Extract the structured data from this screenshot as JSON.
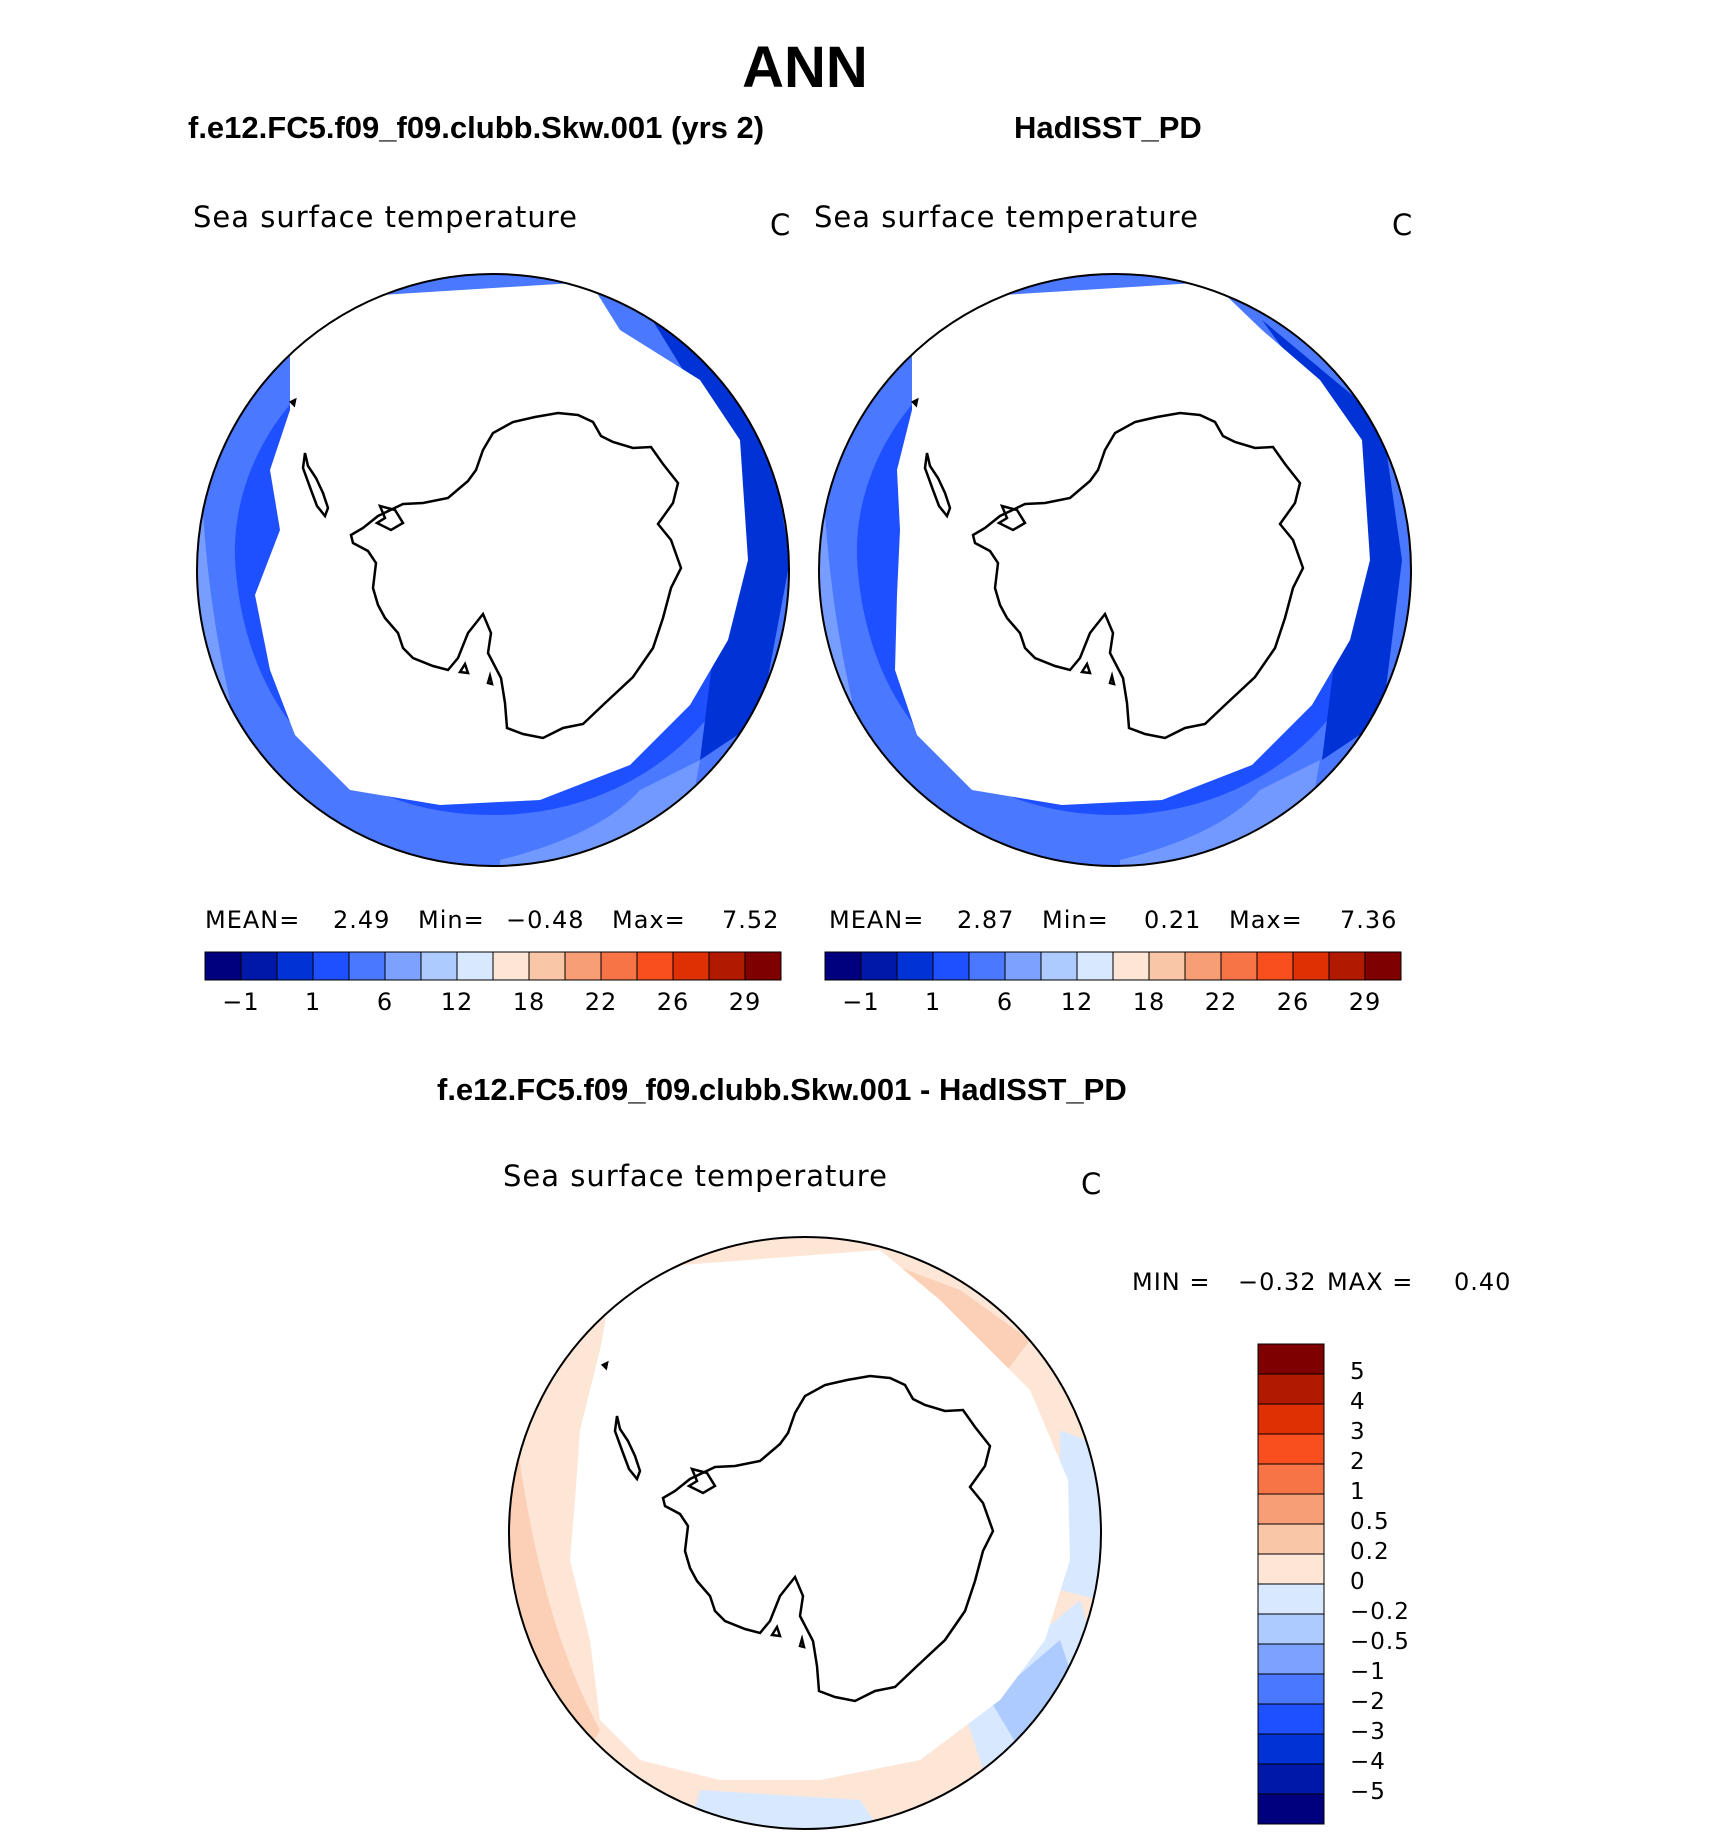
{
  "title": "ANN",
  "panels": {
    "model": {
      "case": "f.e12.FC5.f09_f09.clubb.Skw.001 (yrs 2)",
      "variable": "Sea surface temperature",
      "units": "C",
      "stats": {
        "mean_label": "MEAN=",
        "mean": "2.49",
        "min_label": "Min=",
        "min": "−0.48",
        "max_label": "Max=",
        "max": "7.52"
      }
    },
    "obs": {
      "case": "HadISST_PD",
      "variable": "Sea surface temperature",
      "units": "C",
      "stats": {
        "mean_label": "MEAN=",
        "mean": "2.87",
        "min_label": "Min=",
        "min": "0.21",
        "max_label": "Max=",
        "max": "7.36"
      }
    },
    "diff": {
      "case": "f.e12.FC5.f09_f09.clubb.Skw.001 - HadISST_PD",
      "variable": "Sea surface temperature",
      "units": "C",
      "stats": {
        "min_label": "MIN =",
        "min": "−0.32",
        "max_label": "MAX =",
        "max": "0.40"
      }
    }
  },
  "chart_data": [
    {
      "type": "heatmap",
      "name": "model-sst-map",
      "projection": "south-polar-stereographic",
      "title": "Sea surface temperature",
      "units": "C",
      "colorbar": {
        "orientation": "horizontal",
        "colors": [
          "#00007f",
          "#0018a8",
          "#0032d6",
          "#1e50ff",
          "#4a78ff",
          "#7ca1ff",
          "#aecbff",
          "#d8e9ff",
          "#fde6d6",
          "#fac6a8",
          "#f89e76",
          "#f77447",
          "#f94f1f",
          "#df3003",
          "#b21a00",
          "#7f0000"
        ],
        "tick_labels": [
          "−1",
          "1",
          "6",
          "12",
          "18",
          "22",
          "26",
          "29"
        ]
      },
      "mean": 2.49,
      "min": -0.48,
      "max": 7.52
    },
    {
      "type": "heatmap",
      "name": "obs-sst-map",
      "projection": "south-polar-stereographic",
      "title": "Sea surface temperature",
      "units": "C",
      "colorbar": {
        "orientation": "horizontal",
        "colors": [
          "#00007f",
          "#0018a8",
          "#0032d6",
          "#1e50ff",
          "#4a78ff",
          "#7ca1ff",
          "#aecbff",
          "#d8e9ff",
          "#fde6d6",
          "#fac6a8",
          "#f89e76",
          "#f77447",
          "#f94f1f",
          "#df3003",
          "#b21a00",
          "#7f0000"
        ],
        "tick_labels": [
          "−1",
          "1",
          "6",
          "12",
          "18",
          "22",
          "26",
          "29"
        ]
      },
      "mean": 2.87,
      "min": 0.21,
      "max": 7.36
    },
    {
      "type": "heatmap",
      "name": "diff-sst-map",
      "projection": "south-polar-stereographic",
      "title": "Sea surface temperature",
      "units": "C",
      "colorbar": {
        "orientation": "vertical",
        "colors_top_to_bottom": [
          "#7f0000",
          "#b21a00",
          "#df3003",
          "#f94f1f",
          "#f77447",
          "#f89e76",
          "#fac6a8",
          "#fde6d6",
          "#d8e9ff",
          "#aecbff",
          "#7ca1ff",
          "#4a78ff",
          "#1e50ff",
          "#0032d6",
          "#0018a8",
          "#00007f"
        ],
        "tick_labels_top_to_bottom": [
          "5",
          "4",
          "3",
          "2",
          "1",
          "0.5",
          "0.2",
          "0",
          "−0.2",
          "−0.5",
          "−1",
          "−2",
          "−3",
          "−4",
          "−5"
        ]
      },
      "min": -0.32,
      "max": 0.4
    }
  ]
}
